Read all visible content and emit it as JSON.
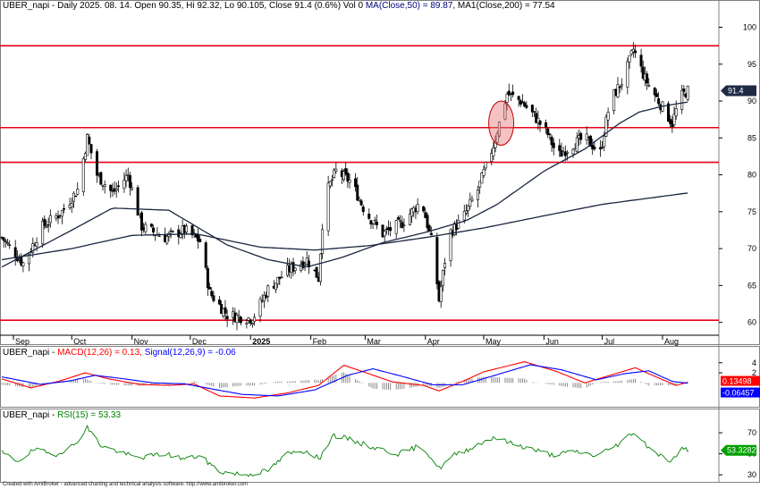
{
  "price_header": {
    "symbol": "UBER_napi",
    "text": " - Daily 2025. 08. 14. Open 90.35, Hi 92.32, Lo 90.105, Close 91.4 (0.6%) Vol 0 ",
    "ma50_label": "MA(Close,50) = 89.87,",
    "ma200_label": " MA1(Close,200) = 77.54"
  },
  "macd_header": {
    "symbol": "UBER_napi",
    "sep": " - ",
    "macd_label": "MACD(12,26) = 0.13,",
    "signal_label": " Signal(12,26,9) = -0.06"
  },
  "rsi_header": {
    "symbol": "UBER_napi",
    "sep": " - ",
    "rsi_label": "RSI(15) = 53.33"
  },
  "credit": "Created with AmiBroker - advanced charting and technical analysis software. http://www.amibroker.com",
  "colors": {
    "candle": "#000000",
    "ma50": "#1a2540",
    "ma200": "#1a2540",
    "hline": "#e8001a",
    "macd": "#ff0000",
    "signal": "#0000ff",
    "hist": "#808080",
    "rsi": "#008000",
    "badge_price": "#1e2a44",
    "badge_macd": "#ff0000",
    "badge_signal": "#0000ff",
    "badge_rsi": "#00a000"
  },
  "chart_data": [
    {
      "type": "candlestick",
      "panel": "price",
      "ylim": [
        58.5,
        102
      ],
      "y_ticks": [
        60,
        65,
        70,
        75,
        80,
        85,
        90,
        95,
        100
      ],
      "x_labels": [
        "Sep",
        "Oct",
        "Nov",
        "Dec",
        "2025",
        "Feb",
        "Mar",
        "Apr",
        "May",
        "Jun",
        "Jul",
        "Aug"
      ],
      "last_close_badge": "91.4",
      "horizontal_levels": [
        97.5,
        86.4,
        81.7,
        60.3
      ],
      "highlight": {
        "date_region": "May",
        "y_range": [
          84.5,
          89.5
        ]
      },
      "close_path": [
        {
          "x": "Aug-26",
          "y": 71.5
        },
        {
          "x": "Sep-06",
          "y": 68.0
        },
        {
          "x": "Sep-16",
          "y": 73.0
        },
        {
          "x": "Sep-26",
          "y": 75.0
        },
        {
          "x": "Oct-04",
          "y": 78.0
        },
        {
          "x": "Oct-09",
          "y": 85.0
        },
        {
          "x": "Oct-14",
          "y": 80.0
        },
        {
          "x": "Oct-22",
          "y": 77.5
        },
        {
          "x": "Oct-30",
          "y": 80.0
        },
        {
          "x": "Nov-06",
          "y": 73.0
        },
        {
          "x": "Nov-18",
          "y": 71.5
        },
        {
          "x": "Nov-28",
          "y": 72.5
        },
        {
          "x": "Dec-06",
          "y": 71.0
        },
        {
          "x": "Dec-11",
          "y": 64.0
        },
        {
          "x": "Dec-20",
          "y": 61.0
        },
        {
          "x": "Jan-02",
          "y": 60.5
        },
        {
          "x": "Jan-10",
          "y": 64.5
        },
        {
          "x": "Jan-20",
          "y": 67.0
        },
        {
          "x": "Jan-30",
          "y": 68.5
        },
        {
          "x": "Feb-05",
          "y": 66.0
        },
        {
          "x": "Feb-08",
          "y": 77.0
        },
        {
          "x": "Feb-14",
          "y": 80.5
        },
        {
          "x": "Feb-22",
          "y": 79.0
        },
        {
          "x": "Mar-01",
          "y": 75.0
        },
        {
          "x": "Mar-10",
          "y": 72.0
        },
        {
          "x": "Mar-20",
          "y": 73.5
        },
        {
          "x": "Mar-30",
          "y": 76.5
        },
        {
          "x": "Apr-05",
          "y": 70.0
        },
        {
          "x": "Apr-08",
          "y": 63.0
        },
        {
          "x": "Apr-13",
          "y": 72.0
        },
        {
          "x": "Apr-20",
          "y": 74.0
        },
        {
          "x": "Apr-28",
          "y": 78.0
        },
        {
          "x": "May-06",
          "y": 84.0
        },
        {
          "x": "May-13",
          "y": 91.0
        },
        {
          "x": "May-20",
          "y": 90.0
        },
        {
          "x": "May-27",
          "y": 88.0
        },
        {
          "x": "Jun-03",
          "y": 85.5
        },
        {
          "x": "Jun-08",
          "y": 82.5
        },
        {
          "x": "Jun-15",
          "y": 84.0
        },
        {
          "x": "Jun-22",
          "y": 85.0
        },
        {
          "x": "Jun-30",
          "y": 83.0
        },
        {
          "x": "Jul-05",
          "y": 90.0
        },
        {
          "x": "Jul-12",
          "y": 93.0
        },
        {
          "x": "Jul-17",
          "y": 97.0
        },
        {
          "x": "Jul-23",
          "y": 93.0
        },
        {
          "x": "Jul-30",
          "y": 90.0
        },
        {
          "x": "Aug-06",
          "y": 87.0
        },
        {
          "x": "Aug-10",
          "y": 90.5
        },
        {
          "x": "Aug-14",
          "y": 91.4
        }
      ],
      "series": [
        {
          "name": "MA(Close,50)",
          "points": [
            {
              "x": "Aug-26",
              "y": 67.5
            },
            {
              "x": "Oct-01",
              "y": 72.5
            },
            {
              "x": "Oct-22",
              "y": 75.5
            },
            {
              "x": "Nov-20",
              "y": 75.2
            },
            {
              "x": "Dec-04",
              "y": 73.0
            },
            {
              "x": "Dec-20",
              "y": 70.5
            },
            {
              "x": "Jan-10",
              "y": 68.5
            },
            {
              "x": "Jan-30",
              "y": 67.5
            },
            {
              "x": "Feb-17",
              "y": 68.8
            },
            {
              "x": "Mar-10",
              "y": 70.8
            },
            {
              "x": "Apr-01",
              "y": 72.2
            },
            {
              "x": "Apr-22",
              "y": 73.8
            },
            {
              "x": "May-08",
              "y": 76.0
            },
            {
              "x": "Jun-01",
              "y": 80.5
            },
            {
              "x": "Jun-22",
              "y": 83.5
            },
            {
              "x": "Jul-10",
              "y": 87.0
            },
            {
              "x": "Jul-20",
              "y": 88.5
            },
            {
              "x": "Aug-01",
              "y": 89.3
            },
            {
              "x": "Aug-14",
              "y": 89.87
            }
          ]
        },
        {
          "name": "MA1(Close,200)",
          "points": [
            {
              "x": "Aug-26",
              "y": 68.5
            },
            {
              "x": "Oct-01",
              "y": 70.0
            },
            {
              "x": "Nov-01",
              "y": 71.8
            },
            {
              "x": "Dec-04",
              "y": 72.0
            },
            {
              "x": "Jan-06",
              "y": 70.2
            },
            {
              "x": "Feb-03",
              "y": 69.8
            },
            {
              "x": "Mar-03",
              "y": 70.4
            },
            {
              "x": "Apr-01",
              "y": 71.5
            },
            {
              "x": "May-01",
              "y": 72.8
            },
            {
              "x": "Jun-02",
              "y": 74.5
            },
            {
              "x": "Jul-01",
              "y": 76.0
            },
            {
              "x": "Aug-14",
              "y": 77.54
            }
          ]
        }
      ]
    },
    {
      "type": "line",
      "panel": "macd",
      "ylim": [
        -3.5,
        5.2
      ],
      "y_ticks": [
        2,
        4
      ],
      "badges": [
        "0.13498",
        "-0.06457"
      ],
      "series": [
        {
          "name": "MACD(12,26)",
          "points": [
            {
              "x": "Aug-26",
              "y": 0.8
            },
            {
              "x": "Sep-10",
              "y": -1.0
            },
            {
              "x": "Sep-25",
              "y": 0.4
            },
            {
              "x": "Oct-08",
              "y": 2.0
            },
            {
              "x": "Oct-20",
              "y": 0.8
            },
            {
              "x": "Nov-05",
              "y": -0.3
            },
            {
              "x": "Nov-20",
              "y": -0.5
            },
            {
              "x": "Dec-03",
              "y": -0.2
            },
            {
              "x": "Dec-16",
              "y": -2.6
            },
            {
              "x": "Jan-03",
              "y": -3.0
            },
            {
              "x": "Jan-20",
              "y": -2.0
            },
            {
              "x": "Feb-05",
              "y": -0.5
            },
            {
              "x": "Feb-18",
              "y": 3.5
            },
            {
              "x": "Feb-28",
              "y": 2.2
            },
            {
              "x": "Mar-15",
              "y": 0.2
            },
            {
              "x": "Mar-31",
              "y": -0.5
            },
            {
              "x": "Apr-08",
              "y": -1.6
            },
            {
              "x": "Apr-22",
              "y": 0.6
            },
            {
              "x": "May-01",
              "y": 2.2
            },
            {
              "x": "May-22",
              "y": 4.2
            },
            {
              "x": "Jun-08",
              "y": 2.2
            },
            {
              "x": "Jun-22",
              "y": 0.0
            },
            {
              "x": "Jul-05",
              "y": 1.5
            },
            {
              "x": "Jul-18",
              "y": 3.0
            },
            {
              "x": "Jul-31",
              "y": 0.8
            },
            {
              "x": "Aug-08",
              "y": -0.5
            },
            {
              "x": "Aug-14",
              "y": 0.13
            }
          ]
        },
        {
          "name": "Signal(12,26,9)",
          "points": [
            {
              "x": "Aug-26",
              "y": 1.2
            },
            {
              "x": "Sep-15",
              "y": -0.3
            },
            {
              "x": "Sep-30",
              "y": 0.4
            },
            {
              "x": "Oct-13",
              "y": 1.5
            },
            {
              "x": "Oct-28",
              "y": 0.8
            },
            {
              "x": "Nov-12",
              "y": 0.0
            },
            {
              "x": "Nov-28",
              "y": -0.2
            },
            {
              "x": "Dec-12",
              "y": -1.2
            },
            {
              "x": "Dec-28",
              "y": -2.3
            },
            {
              "x": "Jan-15",
              "y": -2.6
            },
            {
              "x": "Feb-03",
              "y": -1.4
            },
            {
              "x": "Feb-20",
              "y": 1.5
            },
            {
              "x": "Mar-05",
              "y": 2.8
            },
            {
              "x": "Mar-20",
              "y": 1.3
            },
            {
              "x": "Apr-05",
              "y": -0.4
            },
            {
              "x": "Apr-20",
              "y": -0.4
            },
            {
              "x": "May-05",
              "y": 1.3
            },
            {
              "x": "May-25",
              "y": 3.6
            },
            {
              "x": "Jun-10",
              "y": 2.6
            },
            {
              "x": "Jun-28",
              "y": 0.6
            },
            {
              "x": "Jul-12",
              "y": 1.8
            },
            {
              "x": "Jul-25",
              "y": 2.4
            },
            {
              "x": "Aug-06",
              "y": 0.3
            },
            {
              "x": "Aug-14",
              "y": -0.06
            }
          ]
        }
      ]
    },
    {
      "type": "line",
      "panel": "rsi",
      "ylim": [
        25,
        82
      ],
      "y_ticks": [
        30,
        50,
        70
      ],
      "badges": [
        "53.3282"
      ],
      "series": [
        {
          "name": "RSI(15)",
          "points": [
            {
              "x": "Aug-26",
              "y": 51
            },
            {
              "x": "Sep-03",
              "y": 43
            },
            {
              "x": "Sep-12",
              "y": 54
            },
            {
              "x": "Sep-22",
              "y": 49
            },
            {
              "x": "Oct-02",
              "y": 58
            },
            {
              "x": "Oct-09",
              "y": 75
            },
            {
              "x": "Oct-16",
              "y": 58
            },
            {
              "x": "Oct-25",
              "y": 52
            },
            {
              "x": "Nov-04",
              "y": 46
            },
            {
              "x": "Nov-18",
              "y": 50
            },
            {
              "x": "Nov-28",
              "y": 45
            },
            {
              "x": "Dec-06",
              "y": 48
            },
            {
              "x": "Dec-16",
              "y": 33
            },
            {
              "x": "Dec-30",
              "y": 30
            },
            {
              "x": "Jan-10",
              "y": 34
            },
            {
              "x": "Jan-20",
              "y": 50
            },
            {
              "x": "Jan-30",
              "y": 53
            },
            {
              "x": "Feb-06",
              "y": 45
            },
            {
              "x": "Feb-12",
              "y": 68
            },
            {
              "x": "Feb-22",
              "y": 63
            },
            {
              "x": "Mar-05",
              "y": 56
            },
            {
              "x": "Mar-18",
              "y": 50
            },
            {
              "x": "Mar-30",
              "y": 58
            },
            {
              "x": "Apr-08",
              "y": 36
            },
            {
              "x": "Apr-16",
              "y": 49
            },
            {
              "x": "Apr-25",
              "y": 56
            },
            {
              "x": "May-06",
              "y": 66
            },
            {
              "x": "May-15",
              "y": 60
            },
            {
              "x": "May-25",
              "y": 55
            },
            {
              "x": "Jun-05",
              "y": 49
            },
            {
              "x": "Jun-18",
              "y": 52
            },
            {
              "x": "Jun-28",
              "y": 48
            },
            {
              "x": "Jul-10",
              "y": 60
            },
            {
              "x": "Jul-17",
              "y": 71
            },
            {
              "x": "Jul-24",
              "y": 58
            },
            {
              "x": "Aug-01",
              "y": 47
            },
            {
              "x": "Aug-06",
              "y": 43
            },
            {
              "x": "Aug-10",
              "y": 55
            },
            {
              "x": "Aug-14",
              "y": 53.33
            }
          ]
        }
      ]
    }
  ]
}
